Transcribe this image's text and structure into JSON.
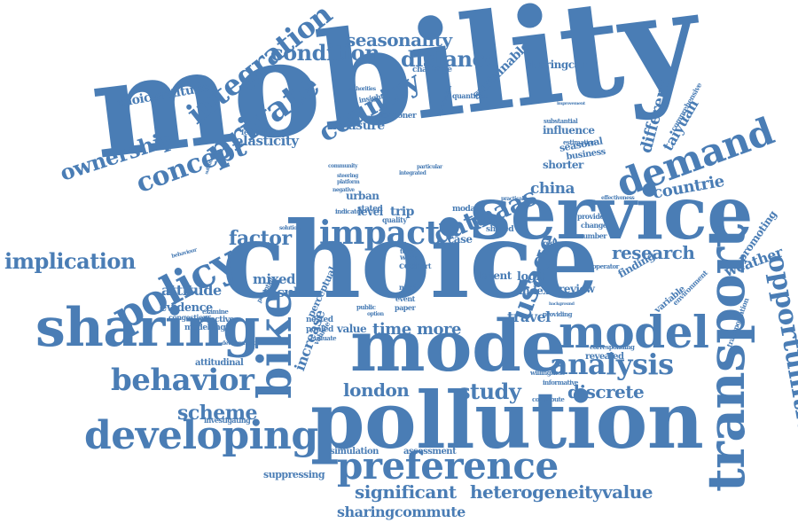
{
  "colors": {
    "word": "#4a7db5",
    "background": "#ffffff"
  },
  "words": [
    {
      "text": "mobility",
      "weight": 100
    },
    {
      "text": "choice",
      "weight": 96
    },
    {
      "text": "service",
      "weight": 70
    },
    {
      "text": "mode",
      "weight": 68
    },
    {
      "text": "pollution",
      "weight": 72
    },
    {
      "text": "sharing",
      "weight": 52
    },
    {
      "text": "transport",
      "weight": 52
    },
    {
      "text": "model",
      "weight": 42
    },
    {
      "text": "bike",
      "weight": 44
    },
    {
      "text": "policy",
      "weight": 40
    },
    {
      "text": "developing",
      "weight": 38
    },
    {
      "text": "preference",
      "weight": 38
    },
    {
      "text": "demand",
      "weight": 36
    },
    {
      "text": "private",
      "weight": 32
    },
    {
      "text": "behavior",
      "weight": 30
    },
    {
      "text": "impact",
      "weight": 30
    },
    {
      "text": "opportunities",
      "weight": 28
    },
    {
      "text": "usage",
      "weight": 28
    },
    {
      "text": "analysis",
      "weight": 28
    },
    {
      "text": "country",
      "weight": 26
    },
    {
      "text": "integration",
      "weight": 26
    },
    {
      "text": "concept",
      "weight": 24
    },
    {
      "text": "maas",
      "weight": 24
    },
    {
      "text": "data",
      "weight": 24
    },
    {
      "text": "implication",
      "weight": 20
    },
    {
      "text": "ownership",
      "weight": 20
    },
    {
      "text": "scheme",
      "weight": 20
    },
    {
      "text": "research",
      "weight": 18
    },
    {
      "text": "distance",
      "weight": 20
    },
    {
      "text": "condition",
      "weight": 20
    },
    {
      "text": "seasonality",
      "weight": 18
    },
    {
      "text": "factor",
      "weight": 18
    },
    {
      "text": "london",
      "weight": 18
    },
    {
      "text": "study",
      "weight": 20
    },
    {
      "text": "discrete",
      "weight": 18
    },
    {
      "text": "significant",
      "weight": 16
    },
    {
      "text": "heterogeneityvalue",
      "weight": 16
    },
    {
      "text": "sharingcommute",
      "weight": 14
    },
    {
      "text": "different",
      "weight": 16
    },
    {
      "text": "taiyuan",
      "weight": 14
    },
    {
      "text": "countrie",
      "weight": 14
    },
    {
      "text": "weather",
      "weight": 14
    },
    {
      "text": "china",
      "weight": 14
    },
    {
      "text": "time",
      "weight": 14
    },
    {
      "text": "more",
      "weight": 14
    },
    {
      "text": "travel",
      "weight": 12
    },
    {
      "text": "elasticity",
      "weight": 12
    },
    {
      "text": "measure",
      "weight": 12
    },
    {
      "text": "mixed",
      "weight": 12
    },
    {
      "text": "result",
      "weight": 12
    },
    {
      "text": "attitude",
      "weight": 12
    },
    {
      "text": "evidence",
      "weight": 10
    },
    {
      "text": "increase",
      "weight": 12
    },
    {
      "text": "choiceattitude",
      "weight": 12
    },
    {
      "text": "sustainable",
      "weight": 12
    },
    {
      "text": "sharingcar",
      "weight": 10
    },
    {
      "text": "influence",
      "weight": 10
    },
    {
      "text": "shorter",
      "weight": 10
    },
    {
      "text": "business",
      "weight": 10
    },
    {
      "text": "seasonal",
      "weight": 10
    },
    {
      "text": "urban",
      "weight": 10
    },
    {
      "text": "trip",
      "weight": 12
    },
    {
      "text": "level",
      "weight": 10
    },
    {
      "text": "logit",
      "weight": 10
    },
    {
      "text": "index",
      "weight": 10
    },
    {
      "text": "review",
      "weight": 10
    },
    {
      "text": "latent",
      "weight": 10
    },
    {
      "text": "case",
      "weight": 10
    },
    {
      "text": "value",
      "weight": 10
    },
    {
      "text": "finding",
      "weight": 10
    },
    {
      "text": "revealed",
      "weight": 9
    },
    {
      "text": "promoting",
      "weight": 10
    },
    {
      "text": "variable",
      "weight": 9
    },
    {
      "text": "attitudinal",
      "weight": 9
    },
    {
      "text": "simulation",
      "weight": 9
    },
    {
      "text": "assessment",
      "weight": 9
    },
    {
      "text": "suppressing",
      "weight": 9
    },
    {
      "text": "nested",
      "weight": 8
    },
    {
      "text": "pooled",
      "weight": 8
    },
    {
      "text": "perceptual",
      "weight": 9
    },
    {
      "text": "modelling",
      "weight": 8
    },
    {
      "text": "congestion",
      "weight": 8
    },
    {
      "text": "effective",
      "weight": 8
    },
    {
      "text": "investigating",
      "weight": 7
    },
    {
      "text": "comprehensive",
      "weight": 7
    },
    {
      "text": "transportation",
      "weight": 7
    },
    {
      "text": "environment",
      "weight": 7
    },
    {
      "text": "feasibility",
      "weight": 7
    },
    {
      "text": "quantified",
      "weight": 7
    },
    {
      "text": "introduction",
      "weight": 6
    },
    {
      "text": "substantial",
      "weight": 6
    },
    {
      "text": "estimation",
      "weight": 6
    },
    {
      "text": "provide",
      "weight": 7
    },
    {
      "text": "change",
      "weight": 7
    },
    {
      "text": "number",
      "weight": 7
    },
    {
      "text": "reduce",
      "weight": 7
    },
    {
      "text": "operator",
      "weight": 6
    },
    {
      "text": "stated",
      "weight": 8
    },
    {
      "text": "cost",
      "weight": 8
    },
    {
      "text": "most",
      "weight": 7
    },
    {
      "text": "event",
      "weight": 7
    },
    {
      "text": "paper",
      "weight": 7
    },
    {
      "text": "public",
      "weight": 7
    },
    {
      "text": "option",
      "weight": 6
    },
    {
      "text": "modal",
      "weight": 7
    },
    {
      "text": "shared",
      "weight": 7
    },
    {
      "text": "quality",
      "weight": 7
    },
    {
      "text": "work",
      "weight": 7
    },
    {
      "text": "short",
      "weight": 7
    },
    {
      "text": "term",
      "weight": 6
    },
    {
      "text": "challenge",
      "weight": 7
    },
    {
      "text": "londoner",
      "weight": 7
    },
    {
      "text": "insight",
      "weight": 7
    },
    {
      "text": "willingness",
      "weight": 6
    },
    {
      "text": "informative",
      "weight": 6
    },
    {
      "text": "corresponding",
      "weight": 6
    },
    {
      "text": "contribute",
      "weight": 6
    },
    {
      "text": "evaluate",
      "weight": 6
    },
    {
      "text": "background",
      "weight": 5
    },
    {
      "text": "providing",
      "weight": 6
    },
    {
      "text": "development",
      "weight": 6
    },
    {
      "text": "examine",
      "weight": 6
    },
    {
      "text": "vehicle",
      "weight": 6
    },
    {
      "text": "potential",
      "weight": 6
    },
    {
      "text": "behaviour",
      "weight": 5
    },
    {
      "text": "substitution",
      "weight": 5
    },
    {
      "text": "improvement",
      "weight": 5
    },
    {
      "text": "steering",
      "weight": 5
    },
    {
      "text": "platform",
      "weight": 5
    },
    {
      "text": "negative",
      "weight": 5
    },
    {
      "text": "indicator",
      "weight": 5
    },
    {
      "text": "solution",
      "weight": 5
    },
    {
      "text": "effectiveness",
      "weight": 5
    },
    {
      "text": "authorities",
      "weight": 5
    },
    {
      "text": "practical",
      "weight": 5
    },
    {
      "text": "integrated",
      "weight": 5
    },
    {
      "text": "particular",
      "weight": 5
    },
    {
      "text": "community",
      "weight": 5
    }
  ]
}
